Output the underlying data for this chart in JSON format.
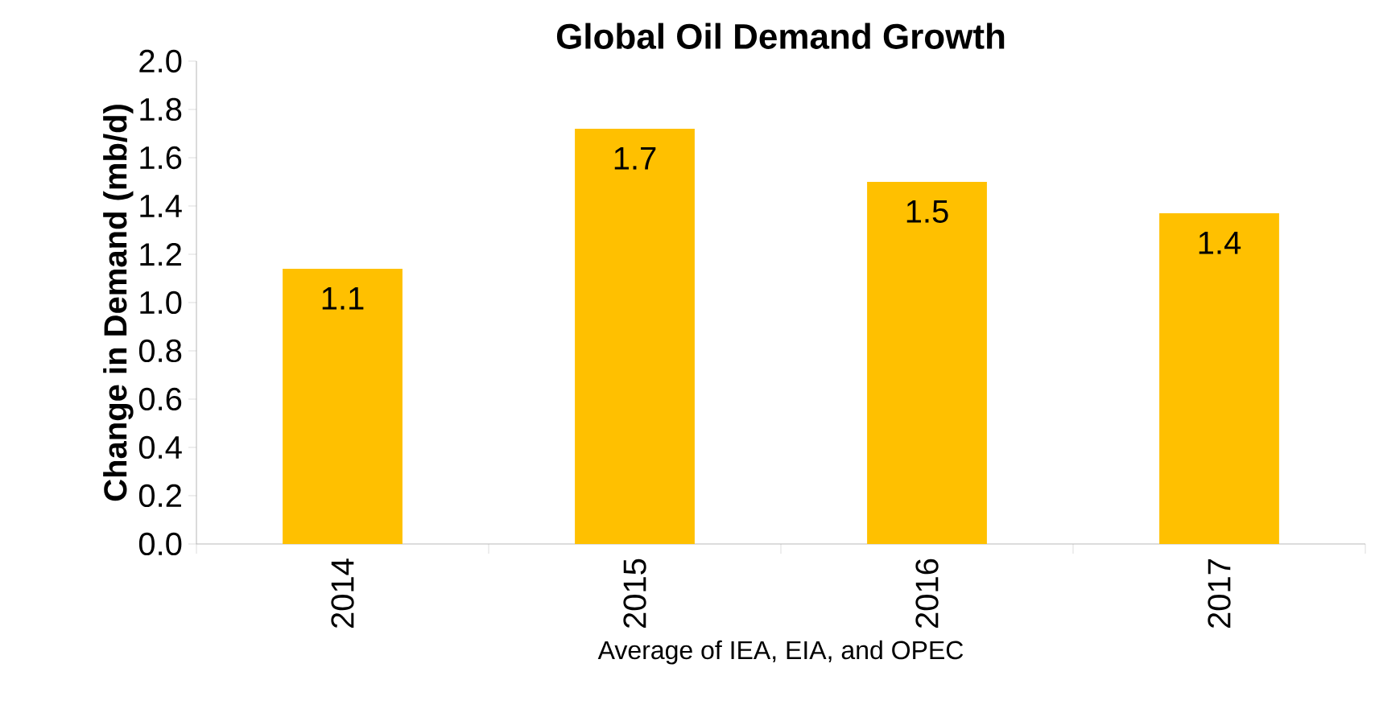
{
  "chart_data": {
    "type": "bar",
    "title": "**Global Oil Demand Growth**",
    "ylabel": "**Change in Demand (mb/d)**",
    "xlabel": "Average of IEA, EIA, and OPEC",
    "categories": [
      "2014",
      "2015",
      "2016",
      "2017"
    ],
    "values": [
      1.14,
      1.72,
      1.5,
      1.37
    ],
    "value_labels": [
      "1.1",
      "1.7",
      "1.5",
      "1.4"
    ],
    "color": "#ffc000",
    "ylim": [
      0,
      2.0
    ],
    "yticks": [
      {
        "value": 0,
        "label": "0.0"
      },
      {
        "value": 0.2,
        "label": "0.2"
      },
      {
        "value": 0.4,
        "label": "0.4"
      },
      {
        "value": 0.6,
        "label": "0.6"
      },
      {
        "value": 0.8,
        "label": "0.8"
      },
      {
        "value": 1.0,
        "label": "1.0"
      },
      {
        "value": 1.2,
        "label": "1.2"
      },
      {
        "value": 1.4,
        "label": "1.4"
      },
      {
        "value": 1.6,
        "label": "1.6"
      },
      {
        "value": 1.8,
        "label": "1.8"
      },
      {
        "value": 2.0,
        "label": "2.0"
      }
    ],
    "grid": false
  }
}
